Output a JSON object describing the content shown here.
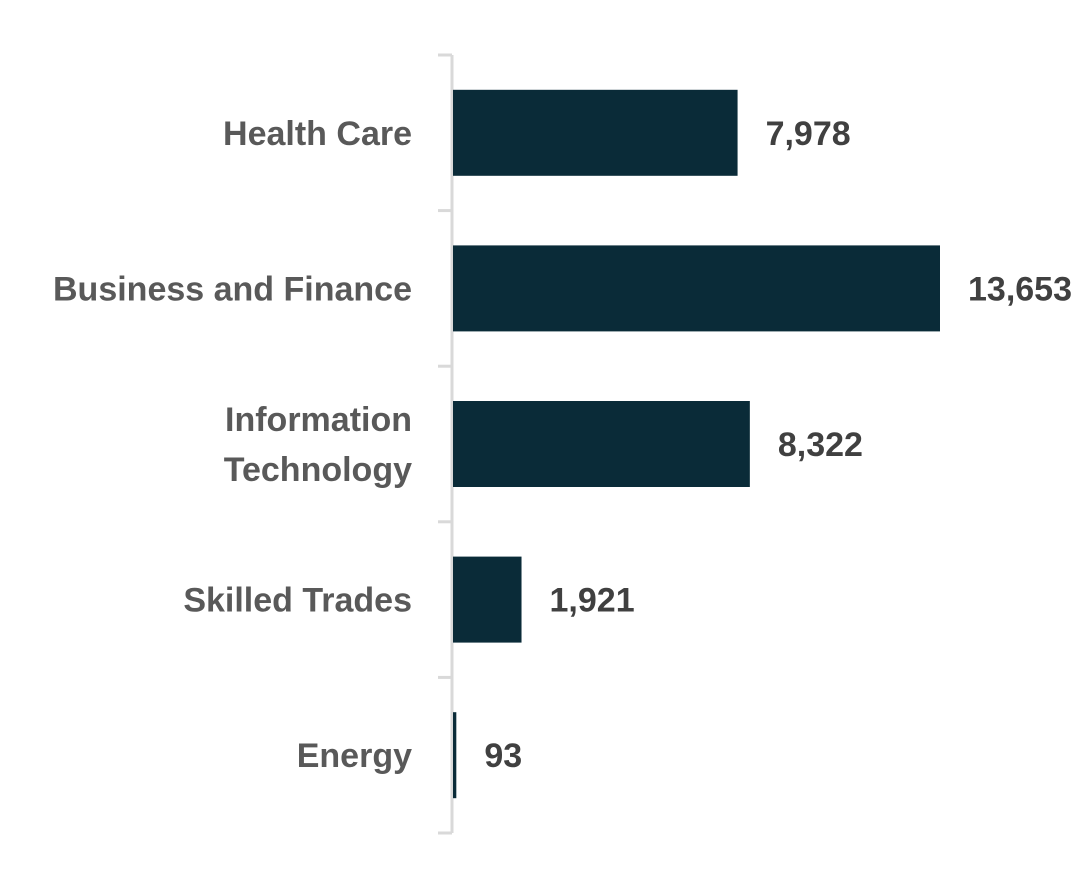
{
  "chart_data": {
    "type": "bar",
    "orientation": "horizontal",
    "categories": [
      [
        "Health Care"
      ],
      [
        "Business and Finance"
      ],
      [
        "Information",
        "Technology"
      ],
      [
        "Skilled Trades"
      ],
      [
        "Energy"
      ]
    ],
    "values": [
      7978,
      13653,
      8322,
      1921,
      93
    ],
    "value_labels": [
      "7,978",
      "13,653",
      "8,322",
      "1,921",
      "93"
    ],
    "title": "",
    "xlabel": "",
    "ylabel": "",
    "xlim": [
      0,
      13653
    ],
    "grid": false,
    "legend": "none",
    "bar_color": "#0a2b38",
    "axis_color": "#d9d9d9"
  }
}
